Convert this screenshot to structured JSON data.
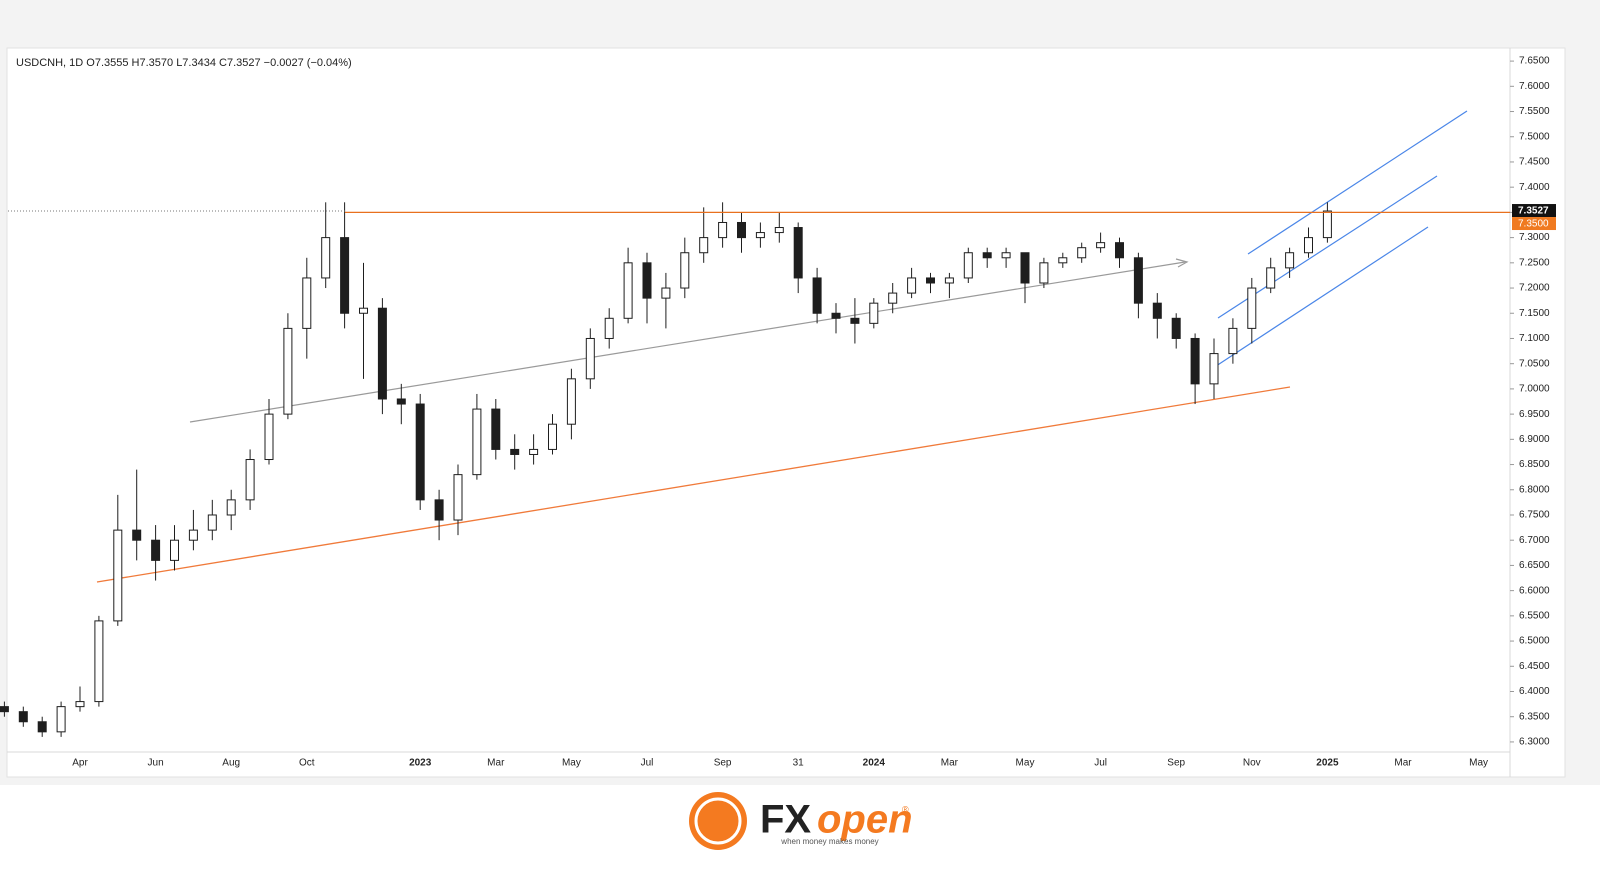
{
  "chart_data": {
    "type": "candlestick",
    "title": "USDCNH, 1D  O7.3555  H7.3570  L7.3434  C7.3527  −0.0027 (−0.04%)",
    "categories": [
      null,
      null,
      null,
      null,
      "Apr",
      null,
      null,
      null,
      "Jun",
      null,
      null,
      null,
      "Aug",
      null,
      null,
      null,
      "Oct",
      null,
      null,
      null,
      null,
      null,
      "2023",
      null,
      null,
      null,
      "Mar",
      null,
      null,
      null,
      "May",
      null,
      null,
      null,
      "Jul",
      null,
      null,
      null,
      "Sep",
      null,
      null,
      null,
      "31",
      null,
      null,
      null,
      "2024",
      null,
      null,
      null,
      "Mar",
      null,
      null,
      null,
      "May",
      null,
      null,
      null,
      "Jul",
      null,
      null,
      null,
      "Sep",
      null,
      null,
      null,
      "Nov",
      null,
      null,
      null,
      "2025",
      null,
      null,
      null,
      "Mar",
      null,
      null,
      null,
      "May"
    ],
    "open": [
      6.37,
      6.36,
      6.34,
      6.32,
      6.37,
      6.38,
      6.54,
      6.72,
      6.7,
      6.66,
      6.7,
      6.72,
      6.75,
      6.78,
      6.86,
      6.95,
      7.12,
      7.22,
      7.3,
      7.15,
      7.16,
      6.98,
      6.97,
      6.78,
      6.74,
      6.83,
      6.96,
      6.88,
      6.87,
      6.88,
      6.93,
      7.02,
      7.1,
      7.14,
      7.25,
      7.18,
      7.2,
      7.27,
      7.3,
      7.33,
      7.3,
      7.31,
      7.32,
      7.22,
      7.15,
      7.14,
      7.13,
      7.17,
      7.19,
      7.22,
      7.21,
      7.22,
      7.27,
      7.26,
      7.27,
      7.21,
      7.25,
      7.26,
      7.28,
      7.29,
      7.26,
      7.17,
      7.14,
      7.1,
      7.01,
      7.07,
      7.12,
      7.2,
      7.24,
      7.27,
      7.3,
      null,
      null,
      null,
      null,
      null,
      null,
      null,
      null
    ],
    "high": [
      6.38,
      6.37,
      6.35,
      6.38,
      6.41,
      6.55,
      6.79,
      6.84,
      6.73,
      6.73,
      6.76,
      6.78,
      6.8,
      6.88,
      6.98,
      7.15,
      7.26,
      7.37,
      7.37,
      7.25,
      7.18,
      7.01,
      6.99,
      6.8,
      6.85,
      6.99,
      6.98,
      6.91,
      6.91,
      6.95,
      7.04,
      7.12,
      7.16,
      7.28,
      7.27,
      7.23,
      7.3,
      7.36,
      7.37,
      7.35,
      7.33,
      7.35,
      7.33,
      7.24,
      7.17,
      7.18,
      7.18,
      7.21,
      7.24,
      7.23,
      7.23,
      7.28,
      7.28,
      7.28,
      7.27,
      7.26,
      7.27,
      7.29,
      7.31,
      7.3,
      7.27,
      7.19,
      7.15,
      7.11,
      7.1,
      7.14,
      7.22,
      7.26,
      7.28,
      7.32,
      7.37,
      null,
      null,
      null,
      null,
      null,
      null,
      null,
      null
    ],
    "low": [
      6.35,
      6.33,
      6.31,
      6.31,
      6.36,
      6.37,
      6.53,
      6.66,
      6.62,
      6.64,
      6.68,
      6.7,
      6.72,
      6.76,
      6.85,
      6.94,
      7.06,
      7.2,
      7.12,
      7.02,
      6.95,
      6.93,
      6.76,
      6.7,
      6.71,
      6.82,
      6.86,
      6.84,
      6.85,
      6.87,
      6.9,
      7.0,
      7.08,
      7.13,
      7.13,
      7.12,
      7.18,
      7.25,
      7.28,
      7.27,
      7.28,
      7.29,
      7.19,
      7.13,
      7.11,
      7.09,
      7.12,
      7.15,
      7.18,
      7.19,
      7.18,
      7.21,
      7.24,
      7.24,
      7.17,
      7.2,
      7.24,
      7.25,
      7.27,
      7.24,
      7.14,
      7.1,
      7.08,
      6.97,
      6.98,
      7.05,
      7.09,
      7.19,
      7.22,
      7.26,
      7.29,
      null,
      null,
      null,
      null,
      null,
      null,
      null,
      null
    ],
    "close": [
      6.36,
      6.34,
      6.32,
      6.37,
      6.38,
      6.54,
      6.72,
      6.7,
      6.66,
      6.7,
      6.72,
      6.75,
      6.78,
      6.86,
      6.95,
      7.12,
      7.22,
      7.3,
      7.15,
      7.16,
      6.98,
      6.97,
      6.78,
      6.74,
      6.83,
      6.96,
      6.88,
      6.87,
      6.88,
      6.93,
      7.02,
      7.1,
      7.14,
      7.25,
      7.18,
      7.2,
      7.27,
      7.3,
      7.33,
      7.3,
      7.31,
      7.32,
      7.22,
      7.15,
      7.14,
      7.13,
      7.17,
      7.19,
      7.22,
      7.21,
      7.22,
      7.27,
      7.26,
      7.27,
      7.21,
      7.25,
      7.26,
      7.28,
      7.29,
      7.26,
      7.17,
      7.14,
      7.1,
      7.01,
      7.07,
      7.12,
      7.2,
      7.24,
      7.27,
      7.3,
      7.3527,
      null,
      null,
      null,
      null,
      null,
      null,
      null,
      null
    ],
    "color": "#1e1e1e",
    "last_price": 7.3527,
    "level": {
      "value": 7.35,
      "label": "7.3500"
    },
    "ylim": [
      6.284,
      7.672
    ],
    "yticks": [
      {
        "value": 6.3,
        "label": "6.3000"
      },
      {
        "value": 6.35,
        "label": "6.3500"
      },
      {
        "value": 6.4,
        "label": "6.4000"
      },
      {
        "value": 6.45,
        "label": "6.4500"
      },
      {
        "value": 6.5,
        "label": "6.5000"
      },
      {
        "value": 6.55,
        "label": "6.5500"
      },
      {
        "value": 6.6,
        "label": "6.6000"
      },
      {
        "value": 6.65,
        "label": "6.6500"
      },
      {
        "value": 6.7,
        "label": "6.7000"
      },
      {
        "value": 6.75,
        "label": "6.7500"
      },
      {
        "value": 6.8,
        "label": "6.8000"
      },
      {
        "value": 6.85,
        "label": "6.8500"
      },
      {
        "value": 6.9,
        "label": "6.9000"
      },
      {
        "value": 6.95,
        "label": "6.9500"
      },
      {
        "value": 7.0,
        "label": "7.0000"
      },
      {
        "value": 7.05,
        "label": "7.0500"
      },
      {
        "value": 7.1,
        "label": "7.1000"
      },
      {
        "value": 7.15,
        "label": "7.1500"
      },
      {
        "value": 7.2,
        "label": "7.2000"
      },
      {
        "value": 7.25,
        "label": "7.2500"
      },
      {
        "value": 7.3,
        "label": "7.3000"
      },
      {
        "value": 7.35,
        "label": "7.3500"
      },
      {
        "value": 7.4,
        "label": "7.4000"
      },
      {
        "value": 7.45,
        "label": "7.4500"
      },
      {
        "value": 7.5,
        "label": "7.5000"
      },
      {
        "value": 7.55,
        "label": "7.5500"
      },
      {
        "value": 7.6,
        "label": "7.6000"
      },
      {
        "value": 7.65,
        "label": "7.6500"
      }
    ],
    "grid": false
  },
  "footer": {
    "brand_fx": "FX",
    "brand_open": "open",
    "registered": "®",
    "tagline": "when money makes money"
  }
}
